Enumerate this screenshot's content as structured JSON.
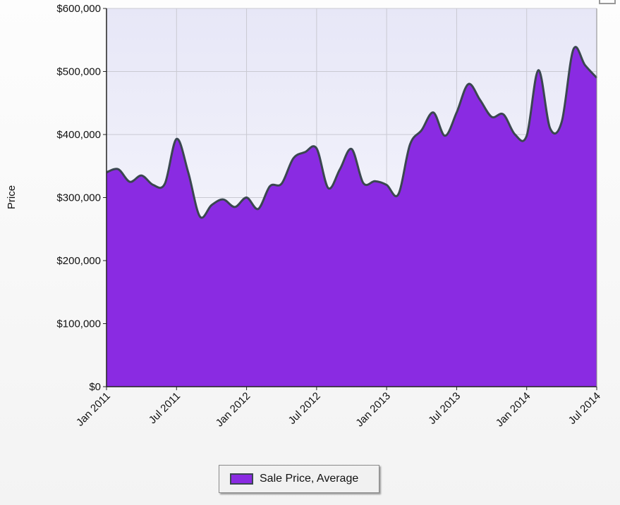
{
  "chart_data": {
    "type": "area",
    "ylabel": "Price",
    "xlabel": "",
    "ylim": [
      0,
      600000
    ],
    "y_ticks": [
      "$0",
      "$100,000",
      "$200,000",
      "$300,000",
      "$400,000",
      "$500,000",
      "$600,000"
    ],
    "y_tick_values": [
      0,
      100000,
      200000,
      300000,
      400000,
      500000,
      600000
    ],
    "x_tick_labels": [
      "Jan 2011",
      "Jul 2011",
      "Jan 2012",
      "Jul 2012",
      "Jan 2013",
      "Jul 2013",
      "Jan 2014",
      "Jul 2014"
    ],
    "x_tick_dates": [
      "2011-01",
      "2011-07",
      "2012-01",
      "2012-07",
      "2013-01",
      "2013-07",
      "2014-01",
      "2014-07"
    ],
    "grid": true,
    "legend_position": "bottom-center",
    "series": [
      {
        "name": "Sale Price, Average",
        "color": "#8a2be2",
        "line_color": "#3a4750",
        "x": [
          "2011-01",
          "2011-02",
          "2011-03",
          "2011-04",
          "2011-05",
          "2011-06",
          "2011-07",
          "2011-08",
          "2011-09",
          "2011-10",
          "2011-11",
          "2011-12",
          "2012-01",
          "2012-02",
          "2012-03",
          "2012-04",
          "2012-05",
          "2012-06",
          "2012-07",
          "2012-08",
          "2012-09",
          "2012-10",
          "2012-11",
          "2012-12",
          "2013-01",
          "2013-02",
          "2013-03",
          "2013-04",
          "2013-05",
          "2013-06",
          "2013-07",
          "2013-08",
          "2013-09",
          "2013-10",
          "2013-11",
          "2013-12",
          "2014-01",
          "2014-02",
          "2014-03",
          "2014-04",
          "2014-05",
          "2014-06",
          "2014-07"
        ],
        "values": [
          340000,
          345000,
          325000,
          335000,
          320000,
          322000,
          393000,
          340000,
          270000,
          288000,
          297000,
          285000,
          300000,
          282000,
          318000,
          322000,
          362000,
          372000,
          378000,
          315000,
          345000,
          377000,
          323000,
          326000,
          320000,
          305000,
          384000,
          407000,
          435000,
          398000,
          435000,
          480000,
          455000,
          428000,
          432000,
          400000,
          398000,
          502000,
          410000,
          420000,
          535000,
          510000,
          490000
        ]
      }
    ]
  },
  "legend": {
    "label": "Sale Price, Average"
  }
}
